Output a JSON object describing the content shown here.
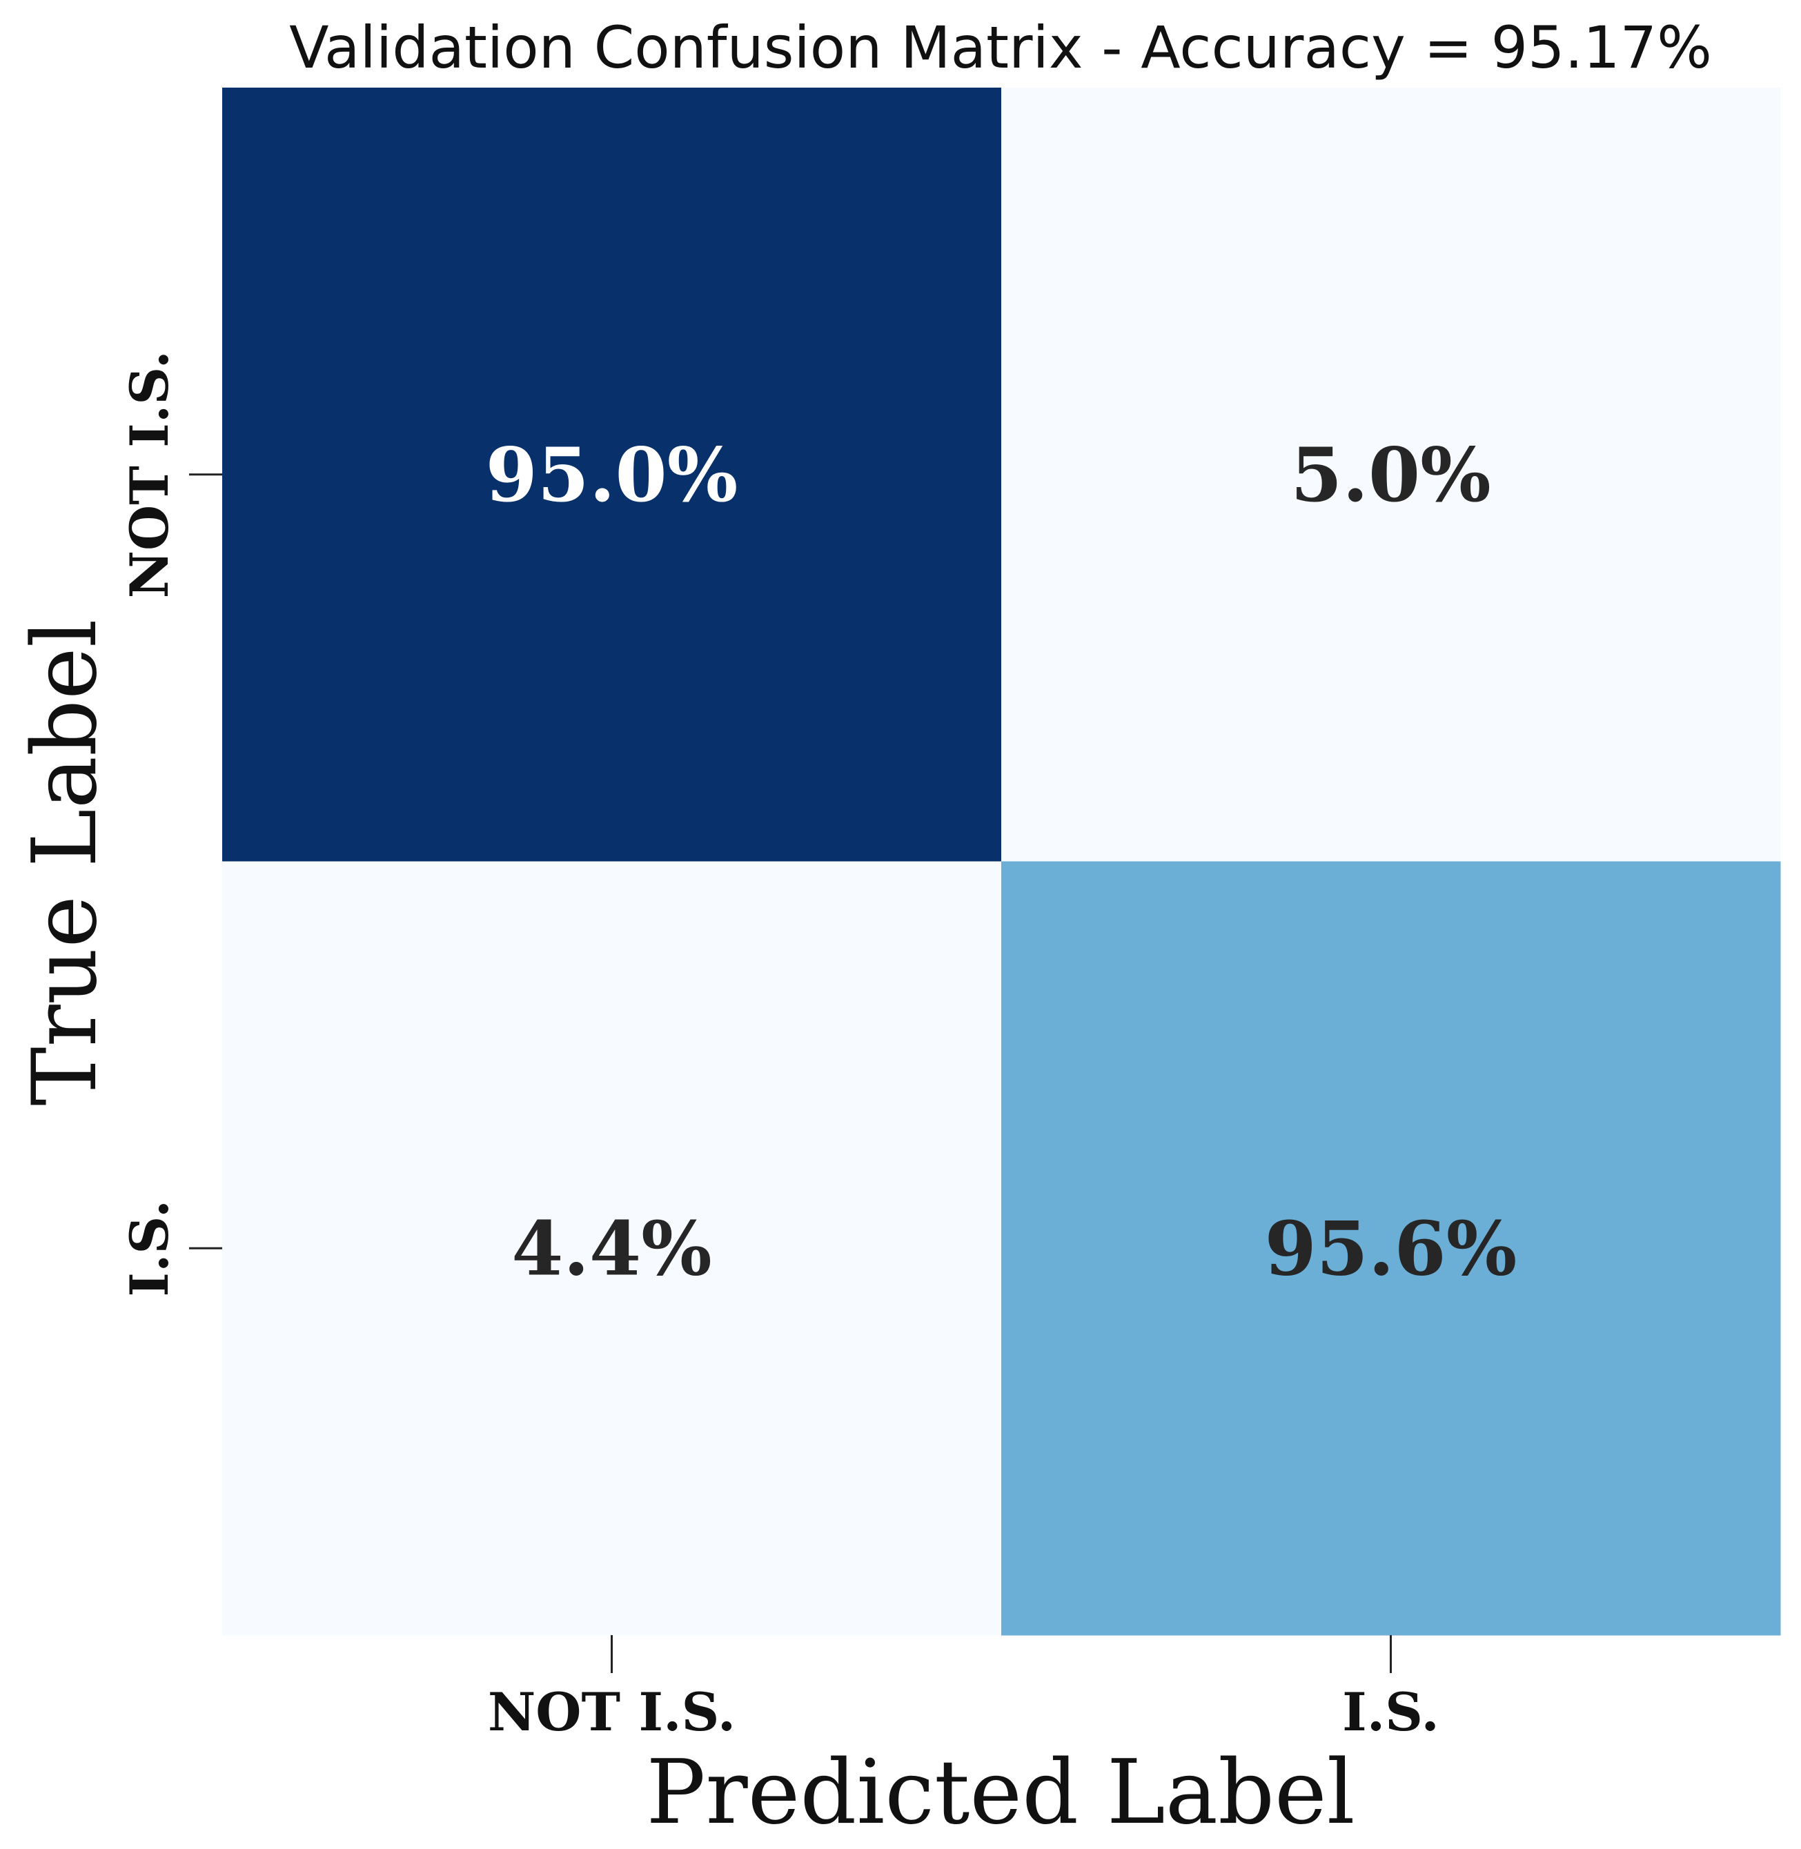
{
  "chart_data": {
    "type": "heatmap",
    "title": "Validation Confusion Matrix - Accuracy = 95.17%",
    "xlabel": "Predicted Label",
    "ylabel": "True Label",
    "x_categories": [
      "NOT I.S.",
      "I.S."
    ],
    "y_categories": [
      "NOT I.S.",
      "I.S."
    ],
    "values": [
      [
        95.0,
        5.0
      ],
      [
        4.4,
        95.6
      ]
    ],
    "cell_labels": [
      [
        "95.0%",
        "5.0%"
      ],
      [
        "4.4%",
        "95.6%"
      ]
    ],
    "accuracy": 95.17,
    "colormap": "Blues",
    "colors": {
      "low": "#f7fbff",
      "high": "#08306b",
      "text_dark": "#262626",
      "text_light": "#ffffff"
    }
  }
}
